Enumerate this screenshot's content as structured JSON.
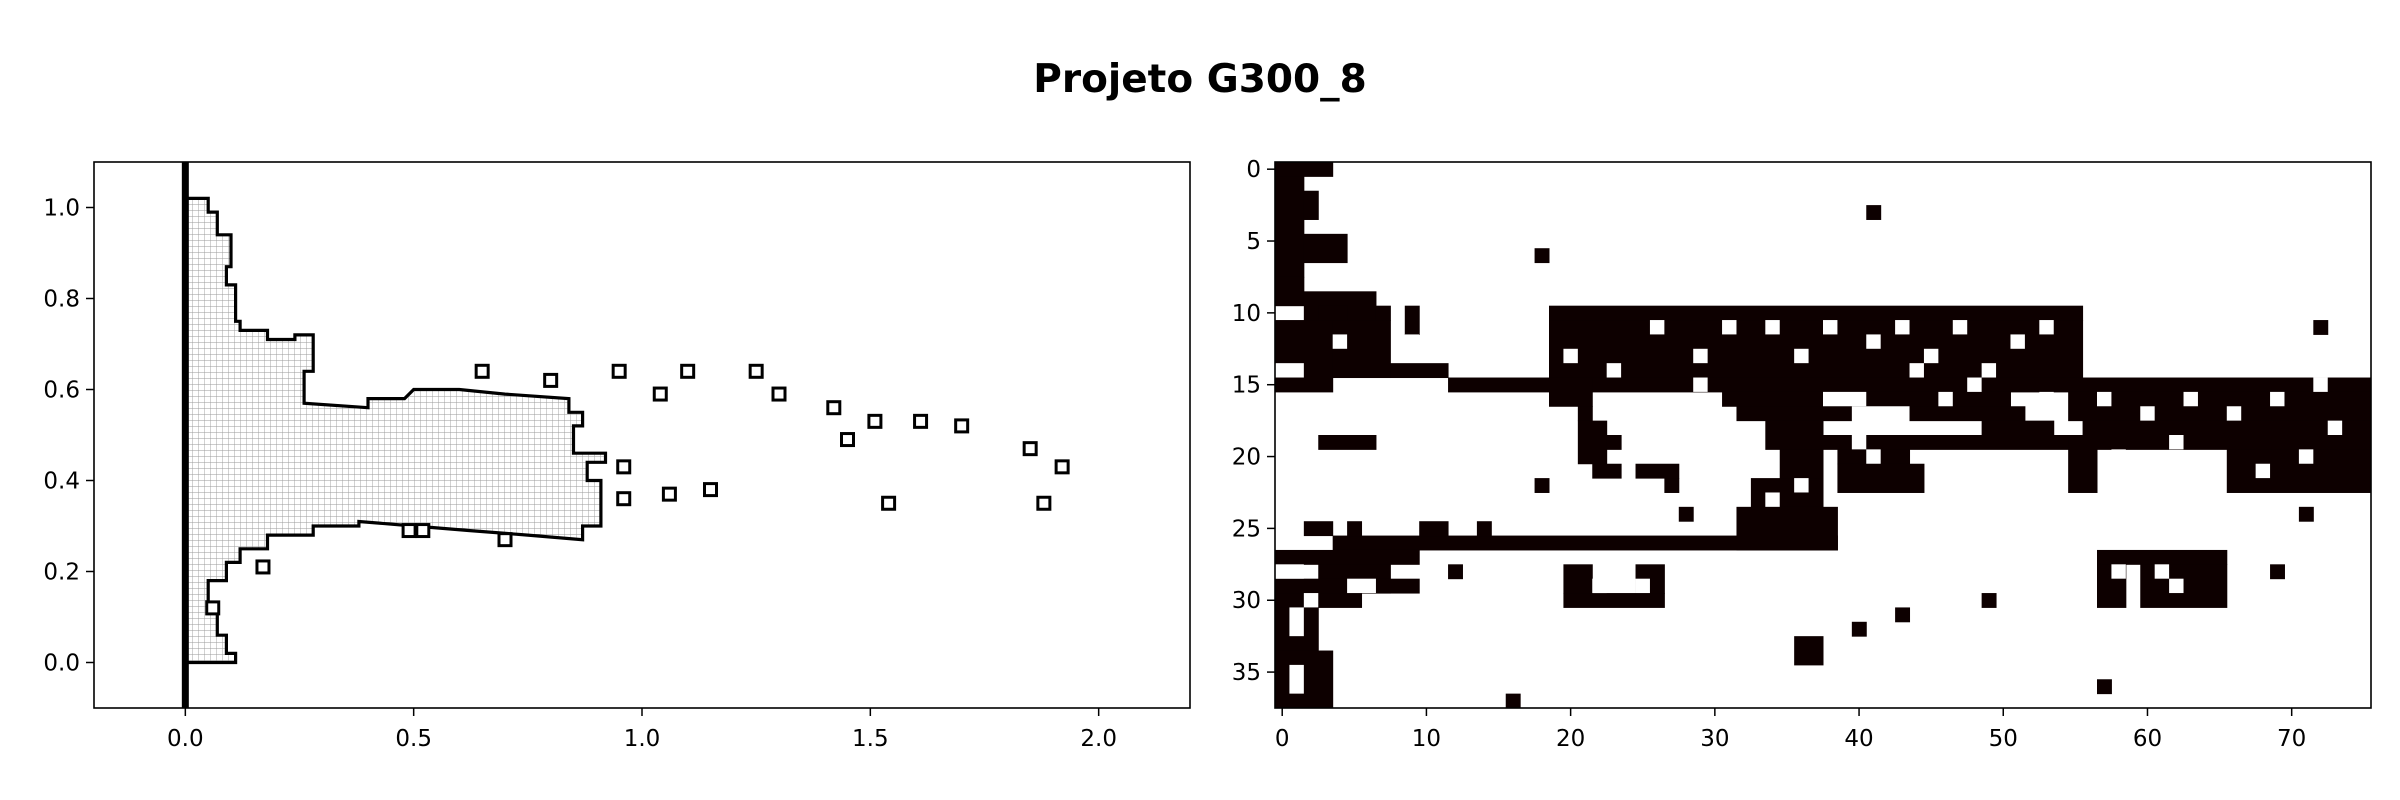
{
  "chart_data": {
    "title": "Projeto G300_8",
    "charts": [
      {
        "type": "line",
        "subtype": "outline-with-mesh",
        "xlim": [
          -0.2,
          2.2
        ],
        "ylim": [
          -0.1,
          1.1
        ],
        "xticks": [
          "0.0",
          "0.5",
          "1.0",
          "1.5",
          "2.0"
        ],
        "yticks": [
          "0.0",
          "0.2",
          "0.4",
          "0.6",
          "0.8",
          "1.0"
        ],
        "grid": false,
        "support_line": {
          "x": 0.0,
          "y_range": [
            -0.1,
            1.1
          ]
        },
        "outline": [
          [
            0.0,
            0.0
          ],
          [
            0.11,
            0.0
          ],
          [
            0.11,
            0.02
          ],
          [
            0.09,
            0.02
          ],
          [
            0.09,
            0.06
          ],
          [
            0.07,
            0.06
          ],
          [
            0.07,
            0.12
          ],
          [
            0.05,
            0.12
          ],
          [
            0.05,
            0.18
          ],
          [
            0.09,
            0.18
          ],
          [
            0.09,
            0.22
          ],
          [
            0.12,
            0.22
          ],
          [
            0.12,
            0.25
          ],
          [
            0.18,
            0.25
          ],
          [
            0.18,
            0.28
          ],
          [
            0.28,
            0.28
          ],
          [
            0.28,
            0.3
          ],
          [
            0.38,
            0.3
          ],
          [
            0.38,
            0.31
          ],
          [
            0.5,
            0.3
          ],
          [
            0.62,
            0.29
          ],
          [
            0.75,
            0.28
          ],
          [
            0.87,
            0.27
          ],
          [
            0.87,
            0.3
          ],
          [
            0.91,
            0.3
          ],
          [
            0.91,
            0.4
          ],
          [
            0.88,
            0.4
          ],
          [
            0.88,
            0.44
          ],
          [
            0.92,
            0.44
          ],
          [
            0.92,
            0.46
          ],
          [
            0.85,
            0.46
          ],
          [
            0.85,
            0.52
          ],
          [
            0.87,
            0.52
          ],
          [
            0.87,
            0.55
          ],
          [
            0.84,
            0.55
          ],
          [
            0.84,
            0.58
          ],
          [
            0.7,
            0.59
          ],
          [
            0.6,
            0.6
          ],
          [
            0.5,
            0.6
          ],
          [
            0.48,
            0.58
          ],
          [
            0.4,
            0.58
          ],
          [
            0.4,
            0.56
          ],
          [
            0.26,
            0.57
          ],
          [
            0.26,
            0.64
          ],
          [
            0.28,
            0.64
          ],
          [
            0.28,
            0.72
          ],
          [
            0.24,
            0.72
          ],
          [
            0.24,
            0.71
          ],
          [
            0.18,
            0.71
          ],
          [
            0.18,
            0.73
          ],
          [
            0.12,
            0.73
          ],
          [
            0.12,
            0.75
          ],
          [
            0.11,
            0.75
          ],
          [
            0.11,
            0.83
          ],
          [
            0.09,
            0.83
          ],
          [
            0.09,
            0.87
          ],
          [
            0.1,
            0.87
          ],
          [
            0.1,
            0.94
          ],
          [
            0.07,
            0.94
          ],
          [
            0.07,
            0.99
          ],
          [
            0.05,
            0.99
          ],
          [
            0.05,
            1.02
          ],
          [
            0.0,
            1.02
          ]
        ],
        "holes": [
          [
            0.17,
            0.21
          ],
          [
            0.06,
            0.12
          ],
          [
            0.49,
            0.29
          ],
          [
            0.52,
            0.29
          ],
          [
            0.7,
            0.27
          ],
          [
            0.96,
            0.36
          ],
          [
            1.06,
            0.37
          ],
          [
            1.15,
            0.38
          ],
          [
            0.65,
            0.64
          ],
          [
            0.8,
            0.62
          ],
          [
            0.95,
            0.64
          ],
          [
            1.1,
            0.64
          ],
          [
            1.25,
            0.64
          ],
          [
            1.3,
            0.59
          ],
          [
            1.42,
            0.56
          ],
          [
            1.51,
            0.53
          ],
          [
            1.61,
            0.53
          ],
          [
            1.7,
            0.52
          ],
          [
            1.85,
            0.47
          ],
          [
            1.92,
            0.43
          ],
          [
            1.45,
            0.49
          ],
          [
            1.54,
            0.35
          ],
          [
            1.88,
            0.35
          ],
          [
            0.96,
            0.43
          ],
          [
            1.04,
            0.59
          ]
        ]
      },
      {
        "type": "heatmap",
        "subtype": "binary-image",
        "nrows": 38,
        "ncols": 76,
        "xticks": [
          0,
          10,
          20,
          30,
          40,
          50,
          60,
          70
        ],
        "yticks": [
          0,
          5,
          10,
          15,
          20,
          25,
          30,
          35
        ],
        "colors": {
          "filled": "#0d0000",
          "empty": "#ffffff"
        },
        "rects": [
          [
            0,
            0,
            4,
            1
          ],
          [
            0,
            1,
            2,
            7
          ],
          [
            2,
            2,
            1,
            2
          ],
          [
            2,
            5,
            3,
            2
          ],
          [
            0,
            8,
            2,
            2
          ],
          [
            2,
            9,
            5,
            2
          ],
          [
            3,
            10,
            2,
            2
          ],
          [
            0,
            11,
            4,
            5
          ],
          [
            4,
            11,
            4,
            4
          ],
          [
            8,
            14,
            4,
            1
          ],
          [
            12,
            15,
            10,
            1
          ],
          [
            9,
            10,
            1,
            2
          ],
          [
            7,
            10,
            1,
            1
          ],
          [
            19,
            10,
            37,
            1
          ],
          [
            19,
            11,
            37,
            4
          ],
          [
            22,
            15,
            34,
            1
          ],
          [
            31,
            16,
            20,
            1
          ],
          [
            32,
            17,
            20,
            1
          ],
          [
            34,
            18,
            4,
            2
          ],
          [
            41,
            19,
            14,
            1
          ],
          [
            38,
            19,
            3,
            1
          ],
          [
            35,
            20,
            3,
            2
          ],
          [
            39,
            20,
            5,
            1
          ],
          [
            39,
            21,
            6,
            2
          ],
          [
            33,
            22,
            5,
            4
          ],
          [
            32,
            24,
            7,
            3
          ],
          [
            56,
            15,
            20,
            1
          ],
          [
            55,
            16,
            21,
            2
          ],
          [
            56,
            18,
            20,
            2
          ],
          [
            66,
            20,
            10,
            3
          ],
          [
            55,
            19,
            2,
            4
          ],
          [
            49,
            18,
            5,
            1
          ],
          [
            19,
            15,
            3,
            2
          ],
          [
            21,
            17,
            1,
            1
          ],
          [
            21,
            18,
            2,
            3
          ],
          [
            22,
            21,
            2,
            1
          ],
          [
            25,
            21,
            3,
            1
          ],
          [
            4,
            26,
            35,
            1
          ],
          [
            0,
            27,
            10,
            1
          ],
          [
            3,
            28,
            5,
            2
          ],
          [
            0,
            29,
            10,
            1
          ],
          [
            0,
            30,
            6,
            1
          ],
          [
            0,
            31,
            3,
            3
          ],
          [
            0,
            34,
            4,
            4
          ],
          [
            2,
            25,
            2,
            1
          ],
          [
            5,
            25,
            1,
            1
          ],
          [
            10,
            25,
            2,
            1
          ],
          [
            14,
            25,
            1,
            1
          ],
          [
            20,
            28,
            2,
            2
          ],
          [
            20,
            30,
            7,
            1
          ],
          [
            25,
            28,
            2,
            2
          ],
          [
            57,
            27,
            9,
            1
          ],
          [
            57,
            28,
            2,
            3
          ],
          [
            60,
            28,
            6,
            3
          ],
          [
            36,
            33,
            2,
            2
          ],
          [
            41,
            3,
            1,
            1
          ],
          [
            18,
            6,
            1,
            1
          ],
          [
            72,
            11,
            1,
            1
          ],
          [
            71,
            24,
            1,
            1
          ],
          [
            69,
            28,
            1,
            1
          ],
          [
            49,
            30,
            1,
            1
          ],
          [
            43,
            31,
            1,
            1
          ],
          [
            40,
            32,
            1,
            1
          ],
          [
            57,
            36,
            1,
            1
          ],
          [
            16,
            37,
            1,
            1
          ],
          [
            12,
            28,
            1,
            1
          ],
          [
            3,
            19,
            4,
            1
          ],
          [
            28,
            24,
            1,
            1
          ],
          [
            27,
            22,
            1,
            1
          ],
          [
            23,
            19,
            1,
            1
          ],
          [
            18,
            22,
            1,
            1
          ]
        ],
        "holes": [
          [
            0,
            14,
            2,
            1
          ],
          [
            4,
            12,
            1,
            1
          ],
          [
            9,
            12,
            1,
            1
          ],
          [
            26,
            11,
            1,
            1
          ],
          [
            29,
            13,
            1,
            1
          ],
          [
            31,
            11,
            1,
            1
          ],
          [
            34,
            11,
            1,
            1
          ],
          [
            36,
            13,
            1,
            1
          ],
          [
            38,
            11,
            1,
            1
          ],
          [
            41,
            12,
            1,
            1
          ],
          [
            43,
            11,
            1,
            1
          ],
          [
            45,
            13,
            1,
            1
          ],
          [
            47,
            11,
            1,
            1
          ],
          [
            49,
            14,
            1,
            1
          ],
          [
            51,
            12,
            1,
            1
          ],
          [
            53,
            11,
            1,
            1
          ],
          [
            20,
            13,
            1,
            1
          ],
          [
            23,
            14,
            1,
            1
          ],
          [
            29,
            15,
            1,
            1
          ],
          [
            44,
            14,
            1,
            1
          ],
          [
            46,
            16,
            1,
            1
          ],
          [
            48,
            15,
            1,
            1
          ],
          [
            53,
            16,
            1,
            1
          ],
          [
            57,
            16,
            1,
            1
          ],
          [
            60,
            17,
            1,
            1
          ],
          [
            63,
            16,
            1,
            1
          ],
          [
            66,
            17,
            1,
            1
          ],
          [
            69,
            16,
            1,
            1
          ],
          [
            72,
            15,
            1,
            1
          ],
          [
            68,
            21,
            1,
            1
          ],
          [
            71,
            20,
            1,
            1
          ],
          [
            73,
            18,
            1,
            1
          ],
          [
            62,
            19,
            1,
            1
          ],
          [
            58,
            20,
            1,
            1
          ],
          [
            40,
            19,
            1,
            1
          ],
          [
            41,
            20,
            1,
            1
          ],
          [
            36,
            22,
            1,
            1
          ],
          [
            34,
            23,
            1,
            1
          ],
          [
            58,
            28,
            1,
            1
          ],
          [
            61,
            28,
            1,
            1
          ],
          [
            62,
            29,
            1,
            1
          ],
          [
            22,
            29,
            1,
            1
          ],
          [
            25,
            29,
            1,
            1
          ],
          [
            0,
            28,
            2,
            1
          ],
          [
            5,
            29,
            2,
            1
          ],
          [
            2,
            30,
            1,
            1
          ],
          [
            1,
            31,
            1,
            2
          ],
          [
            1,
            35,
            1,
            2
          ],
          [
            26,
            18,
            4,
            2
          ],
          [
            38,
            16,
            3,
            1
          ],
          [
            40,
            17,
            4,
            2
          ]
        ]
      }
    ]
  }
}
